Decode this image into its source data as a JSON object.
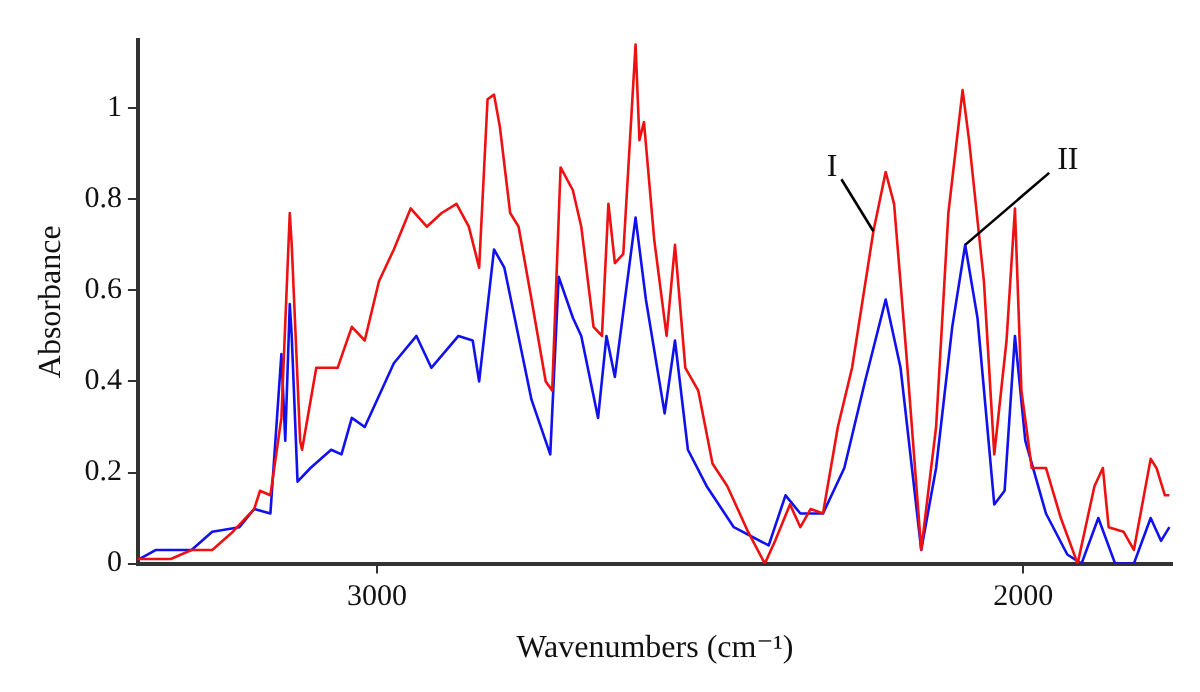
{
  "chart_data": {
    "type": "line",
    "xlabel": "Wavenumbers (cm⁻¹)",
    "ylabel": "Absorbance",
    "xlim": [
      3370,
      1770
    ],
    "xticks": [
      3000,
      2000
    ],
    "ylim": [
      0,
      1.15
    ],
    "yticks": [
      0,
      0.2,
      0.4,
      0.6,
      0.8,
      1
    ],
    "grid": false,
    "legend": false,
    "marker": "none",
    "line_style": "solid",
    "series": [
      {
        "color": "#ee1111",
        "x": [
          3370,
          3319,
          3287,
          3255,
          3223,
          3190,
          3181,
          3165,
          3158,
          3148,
          3135,
          3132,
          3119,
          3116,
          3094,
          3061,
          3039,
          3019,
          2997,
          2974,
          2948,
          2923,
          2900,
          2877,
          2858,
          2842,
          2829,
          2819,
          2810,
          2794,
          2781,
          2761,
          2739,
          2729,
          2716,
          2697,
          2684,
          2665,
          2652,
          2642,
          2632,
          2619,
          2600,
          2594,
          2587,
          2571,
          2552,
          2539,
          2523,
          2503,
          2481,
          2458,
          2426,
          2400,
          2384,
          2361,
          2345,
          2329,
          2310,
          2287,
          2265,
          2232,
          2213,
          2200,
          2181,
          2158,
          2135,
          2116,
          2094,
          2084,
          2061,
          2045,
          2026,
          2013,
          2003,
          1987,
          1965,
          1942,
          1916,
          1890,
          1877,
          1868,
          1845,
          1829,
          1803,
          1794,
          1781,
          1774
        ],
        "values": [
          0.01,
          0.01,
          0.03,
          0.03,
          0.07,
          0.12,
          0.16,
          0.15,
          0.22,
          0.32,
          0.77,
          0.7,
          0.27,
          0.25,
          0.43,
          0.43,
          0.52,
          0.49,
          0.62,
          0.69,
          0.78,
          0.74,
          0.77,
          0.79,
          0.74,
          0.65,
          1.02,
          1.03,
          0.96,
          0.77,
          0.74,
          0.58,
          0.4,
          0.38,
          0.87,
          0.82,
          0.74,
          0.52,
          0.5,
          0.79,
          0.66,
          0.68,
          1.14,
          0.93,
          0.97,
          0.71,
          0.5,
          0.7,
          0.43,
          0.38,
          0.22,
          0.17,
          0.07,
          0,
          0.05,
          0.13,
          0.08,
          0.12,
          0.11,
          0.3,
          0.43,
          0.73,
          0.86,
          0.79,
          0.46,
          0.03,
          0.3,
          0.77,
          1.04,
          0.93,
          0.62,
          0.24,
          0.49,
          0.78,
          0.38,
          0.21,
          0.21,
          0.1,
          0,
          0.17,
          0.21,
          0.08,
          0.07,
          0.03,
          0.23,
          0.21,
          0.15,
          0.15
        ]
      },
      {
        "color": "#1111ee",
        "x": [
          3368,
          3342,
          3287,
          3255,
          3213,
          3190,
          3165,
          3148,
          3142,
          3135,
          3132,
          3123,
          3103,
          3071,
          3055,
          3039,
          3019,
          2974,
          2939,
          2916,
          2874,
          2852,
          2842,
          2819,
          2803,
          2761,
          2732,
          2719,
          2697,
          2684,
          2658,
          2645,
          2632,
          2600,
          2584,
          2555,
          2539,
          2519,
          2490,
          2448,
          2394,
          2368,
          2345,
          2310,
          2277,
          2245,
          2213,
          2190,
          2158,
          2135,
          2110,
          2090,
          2071,
          2045,
          2029,
          2013,
          1997,
          1965,
          1932,
          1910,
          1884,
          1858,
          1829,
          1803,
          1787,
          1774
        ],
        "values": [
          0.01,
          0.03,
          0.03,
          0.07,
          0.08,
          0.12,
          0.11,
          0.46,
          0.27,
          0.57,
          0.5,
          0.18,
          0.21,
          0.25,
          0.24,
          0.32,
          0.3,
          0.44,
          0.5,
          0.43,
          0.5,
          0.49,
          0.4,
          0.69,
          0.65,
          0.36,
          0.24,
          0.63,
          0.54,
          0.5,
          0.32,
          0.5,
          0.41,
          0.76,
          0.58,
          0.33,
          0.49,
          0.25,
          0.17,
          0.08,
          0.04,
          0.15,
          0.11,
          0.11,
          0.21,
          0.4,
          0.58,
          0.43,
          0.03,
          0.21,
          0.52,
          0.7,
          0.54,
          0.13,
          0.16,
          0.5,
          0.27,
          0.11,
          0.02,
          0,
          0.1,
          0,
          0,
          0.1,
          0.05,
          0.08
        ]
      }
    ],
    "annotations": [
      {
        "text": "I",
        "x": 2232,
        "y": 0.73
      },
      {
        "text": "II",
        "x": 2090,
        "y": 0.7
      }
    ]
  }
}
